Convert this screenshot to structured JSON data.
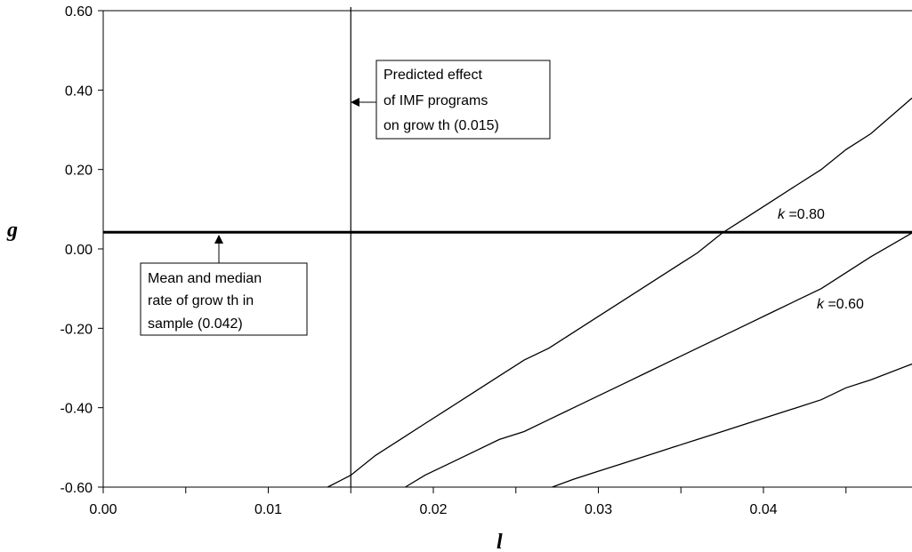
{
  "chart_data": {
    "type": "line",
    "xlabel": "l",
    "ylabel": "g",
    "xlim": [
      0,
      0.049
    ],
    "ylim": [
      -0.6,
      0.6
    ],
    "x_ticks": [
      "0.00",
      "0.01",
      "0.02",
      "0.03",
      "0.04"
    ],
    "x_tick_values": [
      0,
      0.01,
      0.02,
      0.03,
      0.04
    ],
    "x_minor_ticks": [
      0.005,
      0.015,
      0.025,
      0.035,
      0.045
    ],
    "y_ticks": [
      "-0.60",
      "-0.40",
      "-0.20",
      "0.00",
      "0.20",
      "0.40",
      "0.60"
    ],
    "y_tick_values": [
      -0.6,
      -0.4,
      -0.2,
      0,
      0.2,
      0.4,
      0.6
    ],
    "grid": false,
    "series": [
      {
        "label_prefix": "k",
        "label_suffix": " =0.80",
        "x": [
          0.0136,
          0.015,
          0.0165,
          0.018,
          0.0195,
          0.021,
          0.0225,
          0.024,
          0.0255,
          0.027,
          0.0285,
          0.03,
          0.0315,
          0.033,
          0.0345,
          0.036,
          0.0375,
          0.039,
          0.0405,
          0.042,
          0.0435,
          0.045,
          0.0465,
          0.049
        ],
        "y": [
          -0.6,
          -0.57,
          -0.52,
          -0.48,
          -0.44,
          -0.4,
          -0.36,
          -0.32,
          -0.28,
          -0.25,
          -0.21,
          -0.17,
          -0.13,
          -0.09,
          -0.05,
          -0.01,
          0.04,
          0.08,
          0.12,
          0.16,
          0.2,
          0.25,
          0.29,
          0.38
        ]
      },
      {
        "label_prefix": "k",
        "label_suffix": " =0.60",
        "x": [
          0.0183,
          0.0195,
          0.021,
          0.0225,
          0.024,
          0.0255,
          0.027,
          0.0285,
          0.03,
          0.0315,
          0.033,
          0.0345,
          0.036,
          0.0375,
          0.039,
          0.0405,
          0.042,
          0.0435,
          0.045,
          0.0465,
          0.049
        ],
        "y": [
          -0.6,
          -0.57,
          -0.54,
          -0.51,
          -0.48,
          -0.46,
          -0.43,
          -0.4,
          -0.37,
          -0.34,
          -0.31,
          -0.28,
          -0.25,
          -0.22,
          -0.19,
          -0.16,
          -0.13,
          -0.1,
          -0.06,
          -0.02,
          0.04
        ]
      },
      {
        "x": [
          0.0272,
          0.0285,
          0.03,
          0.0315,
          0.033,
          0.0345,
          0.036,
          0.0375,
          0.039,
          0.0405,
          0.042,
          0.0435,
          0.045,
          0.0465,
          0.049
        ],
        "y": [
          -0.6,
          -0.58,
          -0.56,
          -0.54,
          -0.52,
          -0.5,
          -0.48,
          -0.46,
          -0.44,
          -0.42,
          -0.4,
          -0.38,
          -0.35,
          -0.33,
          -0.29
        ]
      }
    ],
    "hline": {
      "y": 0.042
    },
    "vline": {
      "x": 0.015
    },
    "annotations": [
      {
        "id": "imf",
        "lines": [
          "Predicted effect",
          "of IMF programs",
          "on grow th (0.015)"
        ]
      },
      {
        "id": "mean",
        "lines": [
          "Mean and median",
          "rate of grow th in",
          "sample (0.042)"
        ]
      }
    ]
  }
}
